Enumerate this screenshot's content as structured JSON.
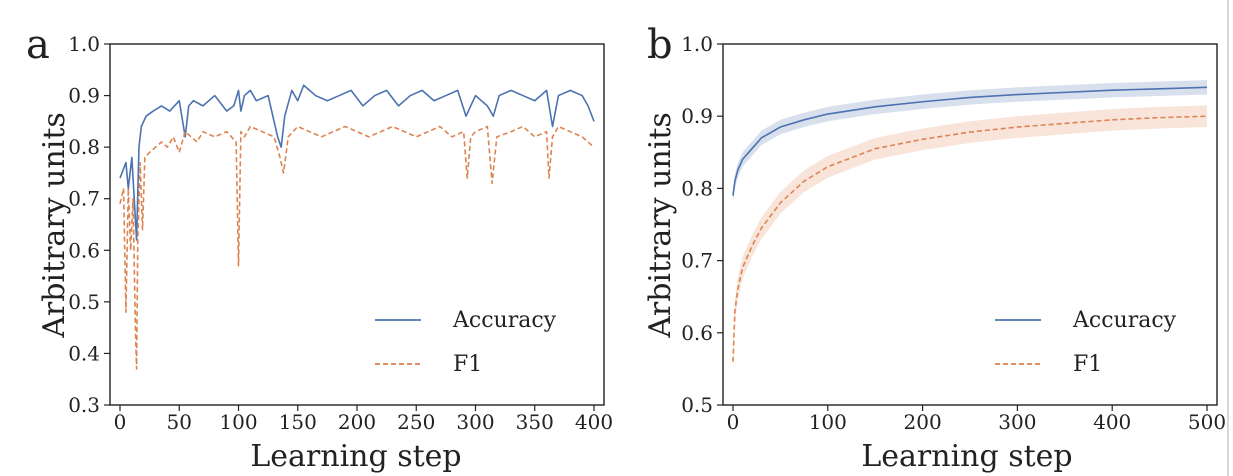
{
  "chart_data": [
    {
      "panel": "a",
      "type": "line",
      "xlabel": "Learning step",
      "ylabel": "Arbitrary units",
      "xlim": [
        0,
        400
      ],
      "ylim": [
        0.3,
        1.0
      ],
      "xticks": [
        0,
        50,
        100,
        150,
        200,
        250,
        300,
        350,
        400
      ],
      "yticks": [
        0.3,
        0.4,
        0.5,
        0.6,
        0.7,
        0.8,
        0.9,
        1.0
      ],
      "grid": false,
      "legend_position": "bottom-right",
      "series": [
        {
          "name": "Accuracy",
          "color": "#4c72b0",
          "dash": "solid",
          "x": [
            0,
            5,
            7,
            10,
            12,
            14,
            16,
            18,
            22,
            28,
            35,
            42,
            50,
            55,
            58,
            62,
            70,
            80,
            90,
            96,
            100,
            102,
            105,
            110,
            115,
            125,
            133,
            136,
            139,
            145,
            150,
            155,
            160,
            165,
            175,
            185,
            195,
            205,
            215,
            225,
            235,
            245,
            255,
            265,
            275,
            285,
            292,
            300,
            310,
            315,
            320,
            330,
            340,
            350,
            360,
            365,
            370,
            380,
            390,
            395,
            400
          ],
          "y": [
            0.74,
            0.77,
            0.72,
            0.78,
            0.7,
            0.62,
            0.8,
            0.84,
            0.86,
            0.87,
            0.88,
            0.87,
            0.89,
            0.82,
            0.88,
            0.89,
            0.88,
            0.9,
            0.87,
            0.88,
            0.91,
            0.87,
            0.9,
            0.91,
            0.89,
            0.9,
            0.82,
            0.8,
            0.86,
            0.91,
            0.89,
            0.92,
            0.91,
            0.9,
            0.89,
            0.9,
            0.91,
            0.88,
            0.9,
            0.91,
            0.88,
            0.9,
            0.91,
            0.89,
            0.9,
            0.91,
            0.86,
            0.9,
            0.88,
            0.86,
            0.9,
            0.91,
            0.9,
            0.89,
            0.91,
            0.84,
            0.9,
            0.91,
            0.9,
            0.88,
            0.85
          ]
        },
        {
          "name": "F1",
          "color": "#dd8452",
          "dash": "dashed",
          "x": [
            0,
            3,
            5,
            7,
            9,
            11,
            13,
            14,
            15,
            17,
            19,
            21,
            25,
            30,
            35,
            40,
            45,
            50,
            55,
            60,
            65,
            70,
            80,
            90,
            98,
            100,
            102,
            105,
            110,
            120,
            130,
            135,
            138,
            142,
            150,
            160,
            170,
            180,
            190,
            200,
            210,
            220,
            230,
            240,
            250,
            260,
            270,
            280,
            290,
            293,
            296,
            300,
            310,
            314,
            318,
            330,
            340,
            350,
            360,
            362,
            365,
            370,
            380,
            390,
            400
          ],
          "y": [
            0.69,
            0.72,
            0.48,
            0.72,
            0.6,
            0.7,
            0.45,
            0.37,
            0.62,
            0.77,
            0.64,
            0.78,
            0.79,
            0.8,
            0.81,
            0.8,
            0.82,
            0.79,
            0.83,
            0.82,
            0.81,
            0.83,
            0.82,
            0.83,
            0.81,
            0.57,
            0.83,
            0.82,
            0.84,
            0.83,
            0.82,
            0.78,
            0.75,
            0.82,
            0.84,
            0.83,
            0.82,
            0.83,
            0.84,
            0.83,
            0.82,
            0.83,
            0.84,
            0.83,
            0.82,
            0.83,
            0.84,
            0.82,
            0.83,
            0.74,
            0.82,
            0.83,
            0.84,
            0.73,
            0.82,
            0.83,
            0.84,
            0.82,
            0.83,
            0.74,
            0.82,
            0.84,
            0.83,
            0.82,
            0.8
          ]
        }
      ]
    },
    {
      "panel": "b",
      "type": "line",
      "xlabel": "Learning step",
      "ylabel": "Arbitrary units",
      "xlim": [
        0,
        500
      ],
      "ylim": [
        0.5,
        1.0
      ],
      "xticks": [
        0,
        100,
        200,
        300,
        400,
        500
      ],
      "yticks": [
        0.5,
        0.6,
        0.7,
        0.8,
        0.9,
        1.0
      ],
      "grid": false,
      "legend_position": "bottom-right",
      "series": [
        {
          "name": "Accuracy",
          "color": "#4c72b0",
          "dash": "solid",
          "band": 0.01,
          "x": [
            0,
            2,
            5,
            10,
            20,
            30,
            50,
            75,
            100,
            150,
            200,
            250,
            300,
            350,
            400,
            450,
            500
          ],
          "y": [
            0.79,
            0.81,
            0.825,
            0.84,
            0.855,
            0.87,
            0.885,
            0.895,
            0.903,
            0.913,
            0.92,
            0.926,
            0.93,
            0.933,
            0.936,
            0.938,
            0.94
          ]
        },
        {
          "name": "F1",
          "color": "#dd8452",
          "dash": "dashed",
          "band": 0.015,
          "x": [
            0,
            2,
            5,
            10,
            20,
            30,
            50,
            75,
            100,
            150,
            200,
            250,
            300,
            350,
            400,
            450,
            500
          ],
          "y": [
            0.56,
            0.63,
            0.66,
            0.69,
            0.72,
            0.745,
            0.78,
            0.81,
            0.83,
            0.855,
            0.868,
            0.878,
            0.885,
            0.89,
            0.895,
            0.898,
            0.9
          ]
        }
      ]
    }
  ]
}
